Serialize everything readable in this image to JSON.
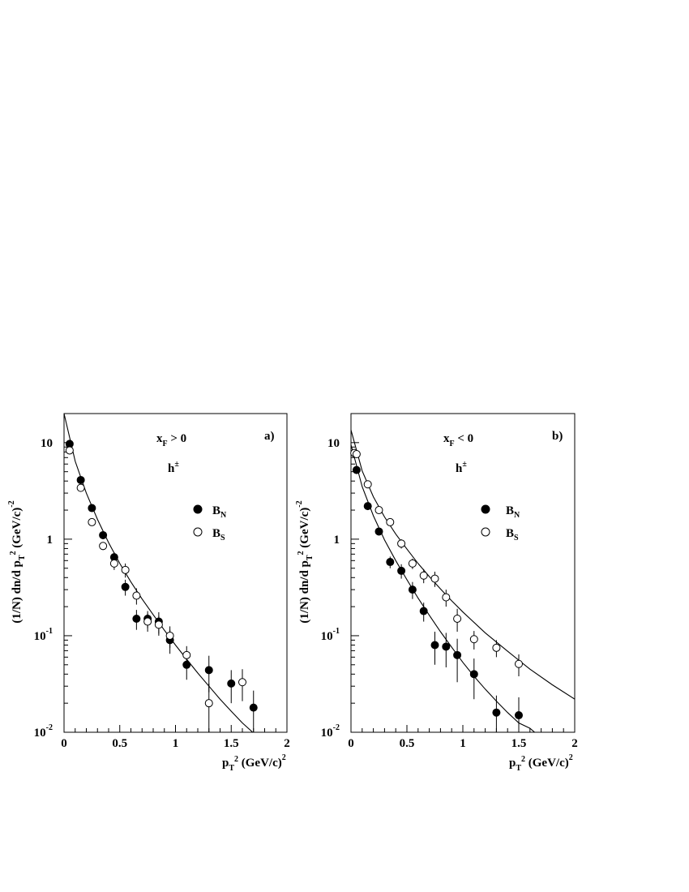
{
  "chart_data": [
    {
      "type": "scatter",
      "panel_label": "a)",
      "annotation_main": "x",
      "annotation_sub": "F",
      "annotation_rest": " > 0",
      "particle_main": "h",
      "particle_sup": "±",
      "y_scale": "log",
      "xlim": [
        0,
        2
      ],
      "ylim": [
        0.01,
        20
      ],
      "x_ticks": [
        "0",
        "0.5",
        "1",
        "1.5",
        "2"
      ],
      "x_tick_values": [
        0,
        0.5,
        1,
        1.5,
        2
      ],
      "y_ticks": [
        {
          "value": 10,
          "base": "10",
          "exp": ""
        },
        {
          "value": 1,
          "base": "1",
          "exp": ""
        },
        {
          "value": 0.1,
          "base": "10",
          "exp": "-1"
        },
        {
          "value": 0.01,
          "base": "10",
          "exp": "-2"
        }
      ],
      "xlabel": {
        "p": "p",
        "sub": "T",
        "sup": "2",
        "rest": " (GeV/c)",
        "rest_sup": "2"
      },
      "ylabel": {
        "pre": "(1/N) dn/d p",
        "sub": "T",
        "sup": "2",
        "rest": " (GeV/c)",
        "rest_sup": "-2"
      },
      "legend_position": "right-middle",
      "series": [
        {
          "name": "B",
          "name_sub": "N",
          "marker": "filled-circle",
          "x": [
            0.05,
            0.15,
            0.25,
            0.35,
            0.45,
            0.55,
            0.65,
            0.75,
            0.85,
            0.95,
            1.1,
            1.3,
            1.5,
            1.7
          ],
          "y": [
            9.7,
            4.1,
            2.1,
            1.1,
            0.65,
            0.32,
            0.15,
            0.15,
            0.14,
            0.09,
            0.05,
            0.044,
            0.032,
            0.018
          ],
          "err": [
            0.5,
            0.3,
            0.15,
            0.1,
            0.08,
            0.06,
            0.035,
            0.03,
            0.035,
            0.025,
            0.015,
            0.018,
            0.012,
            0.009
          ]
        },
        {
          "name": "B",
          "name_sub": "S",
          "marker": "open-circle",
          "x": [
            0.05,
            0.15,
            0.25,
            0.35,
            0.45,
            0.55,
            0.65,
            0.75,
            0.85,
            0.95,
            1.1,
            1.3,
            1.6
          ],
          "y": [
            8.3,
            3.4,
            1.5,
            0.85,
            0.56,
            0.48,
            0.26,
            0.14,
            0.13,
            0.1,
            0.063,
            0.02,
            0.033
          ],
          "err": [
            0.4,
            0.25,
            0.12,
            0.08,
            0.08,
            0.08,
            0.05,
            0.03,
            0.03,
            0.025,
            0.015,
            0.012,
            0.012
          ]
        }
      ],
      "fits": [
        {
          "x": [
            0,
            0.1,
            0.2,
            0.3,
            0.4,
            0.5,
            0.6,
            0.7,
            0.8,
            0.9,
            1.0,
            1.1,
            1.2,
            1.3,
            1.4,
            1.5,
            1.6,
            1.7
          ],
          "y": [
            20,
            6.4,
            3.0,
            1.6,
            0.92,
            0.56,
            0.36,
            0.24,
            0.165,
            0.114,
            0.08,
            0.057,
            0.041,
            0.03,
            0.022,
            0.0165,
            0.0125,
            0.0098
          ]
        }
      ]
    },
    {
      "type": "scatter",
      "panel_label": "b)",
      "annotation_main": "x",
      "annotation_sub": "F",
      "annotation_rest": " < 0",
      "particle_main": "h",
      "particle_sup": "±",
      "y_scale": "log",
      "xlim": [
        0,
        2
      ],
      "ylim": [
        0.01,
        20
      ],
      "x_ticks": [
        "0",
        "0.5",
        "1",
        "1.5",
        "2"
      ],
      "x_tick_values": [
        0,
        0.5,
        1,
        1.5,
        2
      ],
      "y_ticks": [
        {
          "value": 10,
          "base": "10",
          "exp": ""
        },
        {
          "value": 1,
          "base": "1",
          "exp": ""
        },
        {
          "value": 0.1,
          "base": "10",
          "exp": "-1"
        },
        {
          "value": 0.01,
          "base": "10",
          "exp": "-2"
        }
      ],
      "xlabel": {
        "p": "p",
        "sub": "T",
        "sup": "2",
        "rest": " (GeV/c)",
        "rest_sup": "2"
      },
      "ylabel": {
        "pre": "(1/N) dn/d p",
        "sub": "T",
        "sup": "2",
        "rest": " (GeV/c)",
        "rest_sup": "-2"
      },
      "legend_position": "right-middle",
      "series": [
        {
          "name": "B",
          "name_sub": "N",
          "marker": "filled-circle",
          "x": [
            0.05,
            0.15,
            0.25,
            0.35,
            0.45,
            0.55,
            0.65,
            0.75,
            0.85,
            0.95,
            1.1,
            1.3,
            1.5
          ],
          "y": [
            5.2,
            2.2,
            1.2,
            0.58,
            0.47,
            0.3,
            0.18,
            0.08,
            0.077,
            0.063,
            0.04,
            0.016,
            0.015
          ],
          "err": [
            0.3,
            0.15,
            0.1,
            0.08,
            0.08,
            0.06,
            0.04,
            0.03,
            0.03,
            0.03,
            0.018,
            0.008,
            0.008
          ]
        },
        {
          "name": "B",
          "name_sub": "S",
          "marker": "open-circle",
          "x": [
            0.03,
            0.05,
            0.15,
            0.25,
            0.35,
            0.45,
            0.55,
            0.65,
            0.75,
            0.85,
            0.95,
            1.1,
            1.3,
            1.5
          ],
          "y": [
            7.8,
            7.6,
            3.7,
            2.0,
            1.5,
            0.9,
            0.56,
            0.42,
            0.39,
            0.25,
            0.15,
            0.092,
            0.075,
            0.051
          ],
          "err": [
            0.4,
            0.4,
            0.25,
            0.15,
            0.1,
            0.1,
            0.07,
            0.07,
            0.07,
            0.05,
            0.04,
            0.02,
            0.015,
            0.013
          ]
        }
      ],
      "fits": [
        {
          "x": [
            0,
            0.1,
            0.2,
            0.3,
            0.4,
            0.5,
            0.6,
            0.7,
            0.8,
            0.9,
            1.0,
            1.1,
            1.2,
            1.3,
            1.4,
            1.5,
            1.6,
            1.65
          ],
          "y": [
            9.5,
            3.5,
            1.75,
            0.98,
            0.6,
            0.38,
            0.245,
            0.163,
            0.11,
            0.076,
            0.053,
            0.038,
            0.028,
            0.021,
            0.016,
            0.0125,
            0.011,
            0.0098
          ]
        },
        {
          "x": [
            0,
            0.1,
            0.2,
            0.3,
            0.4,
            0.5,
            0.6,
            0.7,
            0.8,
            0.9,
            1.0,
            1.2,
            1.4,
            1.6,
            1.8,
            2.0
          ],
          "y": [
            13.5,
            5.1,
            2.75,
            1.7,
            1.13,
            0.79,
            0.56,
            0.41,
            0.305,
            0.23,
            0.176,
            0.107,
            0.069,
            0.045,
            0.031,
            0.022
          ]
        }
      ]
    }
  ]
}
